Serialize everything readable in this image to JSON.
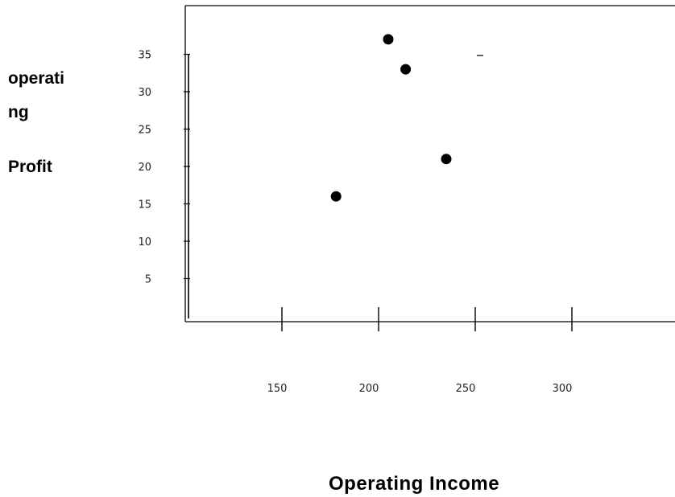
{
  "chart_data": {
    "type": "scatter",
    "title": "",
    "xlabel": "Operating  Income",
    "ylabel_lines": [
      "operati",
      "ng",
      "Profit"
    ],
    "x_ticks": [
      150,
      200,
      250,
      300
    ],
    "x_tick_labels": [
      "150",
      "200",
      "250",
      "300"
    ],
    "y_ticks": [
      5,
      10,
      15,
      20,
      25,
      30,
      35
    ],
    "y_tick_labels": [
      "5",
      "10",
      "15",
      "20",
      "25",
      "30",
      "35"
    ],
    "xlim": [
      100,
      350
    ],
    "ylim": [
      0,
      38
    ],
    "grid": false,
    "legend": "none",
    "marker_color": "#000000",
    "points": [
      {
        "x": 178,
        "y": 16
      },
      {
        "x": 205,
        "y": 37
      },
      {
        "x": 214,
        "y": 33
      },
      {
        "x": 235,
        "y": 21
      }
    ]
  }
}
